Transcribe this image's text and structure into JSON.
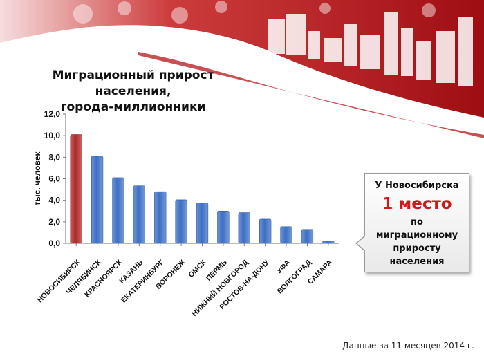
{
  "title": {
    "line1": "Миграционный прирост населения,",
    "line2": "города-миллионники"
  },
  "chart_data": {
    "type": "bar",
    "categories": [
      "НОВОСИБИРСК",
      "ЧЕЛЯБИНСК",
      "КРАСНОЯРСК",
      "КАЗАНЬ",
      "ЕКАТЕРИНБУРГ",
      "ВОРОНЕЖ",
      "ОМСК",
      "ПЕРМЬ",
      "НИЖНИЙ НОВГОРОД",
      "РОСТОВ-НА-ДОНУ",
      "УФА",
      "ВОЛГОГРАД",
      "САМАРА"
    ],
    "values": [
      10.1,
      8.1,
      6.1,
      5.35,
      4.8,
      4.05,
      3.75,
      3.0,
      2.85,
      2.25,
      1.55,
      1.3,
      0.2
    ],
    "ylabel": "тыс. человек",
    "ylim": [
      0,
      12
    ],
    "yticks": [
      "0,0",
      "2,0",
      "4,0",
      "6,0",
      "8,0",
      "10,0",
      "12,0"
    ],
    "highlight_index": 0,
    "colors": {
      "highlight": "#b02828",
      "bar": "#3c6fc4"
    }
  },
  "callout": {
    "line1": "У Новосибирска",
    "big": "1 место",
    "line2": "по",
    "line3": "миграционному",
    "line4": "приросту",
    "line5": "населения"
  },
  "footnote": "Данные за 11 месяцев 2014 г."
}
